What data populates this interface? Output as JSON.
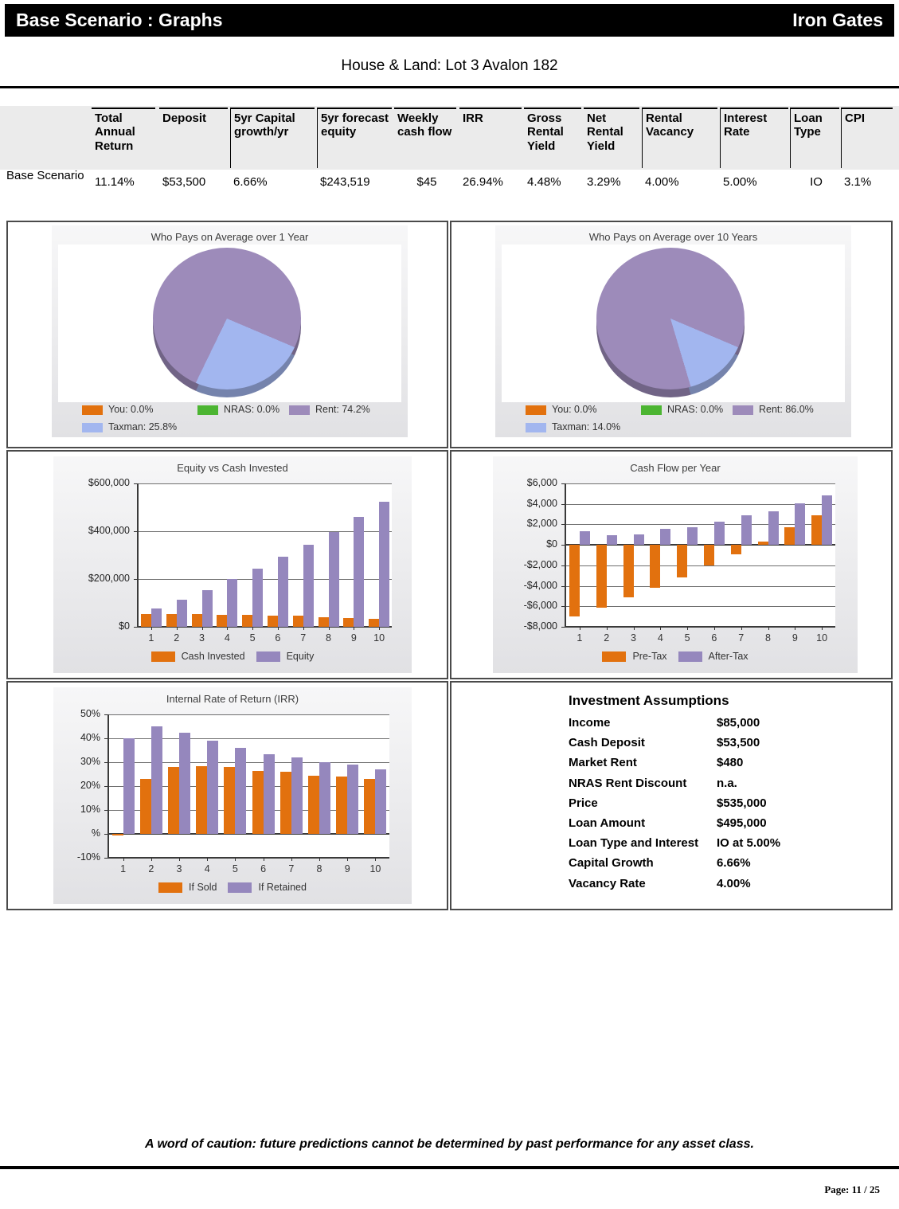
{
  "header": {
    "title": "Base Scenario : Graphs",
    "brand": "Iron Gates"
  },
  "page_title": "House & Land: Lot 3 Avalon 182",
  "scenario_table": {
    "row_label": "Base Scenario",
    "columns": [
      {
        "label": "Total Annual Return",
        "value": "11.14%"
      },
      {
        "label": "Deposit",
        "value": "$53,500"
      },
      {
        "label": "5yr Capital growth/yr",
        "value": "6.66%"
      },
      {
        "label": "5yr forecast equity",
        "value": "$243,519"
      },
      {
        "label": "Weekly cash flow",
        "value": "$45"
      },
      {
        "label": "IRR",
        "value": "26.94%"
      },
      {
        "label": "Gross Rental Yield",
        "value": "4.48%"
      },
      {
        "label": "Net Rental Yield",
        "value": "3.29%"
      },
      {
        "label": "Rental Vacancy",
        "value": "4.00%"
      },
      {
        "label": "Interest Rate",
        "value": "5.00%"
      },
      {
        "label": "Loan Type",
        "value": "IO"
      },
      {
        "label": "CPI",
        "value": "3.1%"
      }
    ]
  },
  "colors": {
    "orange": "#E2710E",
    "green": "#4CB532",
    "purple": "#9587BD",
    "pie_purple": "#9D8BBA",
    "blue": "#A2B6EF",
    "box_border": "#4a4a4a",
    "gridline": "#6f6f6f",
    "axis": "#333333"
  },
  "chart_data": [
    {
      "id": "pie-1yr",
      "type": "pie",
      "title": "Who Pays on Average over 1 Year",
      "slices": [
        {
          "label": "You",
          "pct": 0.0,
          "color": "#E2710E",
          "display": "You: 0.0%"
        },
        {
          "label": "NRAS",
          "pct": 0.0,
          "color": "#4CB532",
          "display": "NRAS: 0.0%"
        },
        {
          "label": "Rent",
          "pct": 74.2,
          "color": "#9D8BBA",
          "display": "Rent: 74.2%"
        },
        {
          "label": "Taxman",
          "pct": 25.8,
          "color": "#A2B6EF",
          "display": "Taxman: 25.8%"
        }
      ]
    },
    {
      "id": "pie-10yr",
      "type": "pie",
      "title": "Who Pays on Average over 10 Years",
      "slices": [
        {
          "label": "You",
          "pct": 0.0,
          "color": "#E2710E",
          "display": "You: 0.0%"
        },
        {
          "label": "NRAS",
          "pct": 0.0,
          "color": "#4CB532",
          "display": "NRAS: 0.0%"
        },
        {
          "label": "Rent",
          "pct": 86.0,
          "color": "#9D8BBA",
          "display": "Rent: 86.0%"
        },
        {
          "label": "Taxman",
          "pct": 14.0,
          "color": "#A2B6EF",
          "display": "Taxman: 14.0%"
        }
      ]
    },
    {
      "id": "equity",
      "type": "bar",
      "title": "Equity vs Cash Invested",
      "categories": [
        "1",
        "2",
        "3",
        "4",
        "5",
        "6",
        "7",
        "8",
        "9",
        "10"
      ],
      "series": [
        {
          "name": "Cash Invested",
          "color": "#E2710E",
          "values": [
            53500,
            54000,
            53500,
            51500,
            50500,
            47500,
            46500,
            41000,
            37000,
            33000
          ]
        },
        {
          "name": "Equity",
          "color": "#9587BD",
          "values": [
            78000,
            115000,
            152000,
            200000,
            243519,
            295000,
            345000,
            398000,
            460000,
            525000
          ]
        }
      ],
      "ylim": [
        0,
        600000
      ],
      "yticks": [
        {
          "value": 600000,
          "label": "$600,000"
        },
        {
          "value": 400000,
          "label": "$400,000"
        },
        {
          "value": 200000,
          "label": "$200,000"
        },
        {
          "value": 0,
          "label": "$0"
        }
      ]
    },
    {
      "id": "cashflow",
      "type": "bar",
      "title": "Cash Flow per Year",
      "categories": [
        "1",
        "2",
        "3",
        "4",
        "5",
        "6",
        "7",
        "8",
        "9",
        "10"
      ],
      "series": [
        {
          "name": "Pre-Tax",
          "color": "#E2710E",
          "values": [
            -7000,
            -6100,
            -5100,
            -4200,
            -3200,
            -2050,
            -900,
            300,
            1700,
            2900
          ]
        },
        {
          "name": "After-Tax",
          "color": "#9587BD",
          "values": [
            1300,
            950,
            1050,
            1550,
            1750,
            2250,
            2900,
            3300,
            4050,
            4800
          ]
        }
      ],
      "ylim": [
        -8000,
        6000
      ],
      "yticks": [
        {
          "value": 6000,
          "label": "$6,000"
        },
        {
          "value": 4000,
          "label": "$4,000"
        },
        {
          "value": 2000,
          "label": "$2,000"
        },
        {
          "value": 0,
          "label": "$0"
        },
        {
          "value": -2000,
          "label": "-$2,000"
        },
        {
          "value": -4000,
          "label": "-$4,000"
        },
        {
          "value": -6000,
          "label": "-$6,000"
        },
        {
          "value": -8000,
          "label": "-$8,000"
        }
      ]
    },
    {
      "id": "irr",
      "type": "bar",
      "title": "Internal Rate of Return (IRR)",
      "categories": [
        "1",
        "2",
        "3",
        "4",
        "5",
        "6",
        "7",
        "8",
        "9",
        "10"
      ],
      "series": [
        {
          "name": "If Sold",
          "color": "#E2710E",
          "values": [
            -0.5,
            23,
            28,
            28.5,
            28,
            26.5,
            26,
            24.5,
            24,
            23
          ]
        },
        {
          "name": "If Retained",
          "color": "#9587BD",
          "values": [
            40,
            45,
            42.5,
            39,
            36,
            33.5,
            32,
            30,
            29,
            27
          ]
        }
      ],
      "ylim": [
        -10,
        50
      ],
      "yticks": [
        {
          "value": 50,
          "label": "50%"
        },
        {
          "value": 40,
          "label": "40%"
        },
        {
          "value": 30,
          "label": "30%"
        },
        {
          "value": 20,
          "label": "20%"
        },
        {
          "value": 10,
          "label": "10%"
        },
        {
          "value": 0,
          "label": "%"
        },
        {
          "value": -10,
          "label": "-10%"
        }
      ]
    }
  ],
  "assumptions": {
    "title": "Investment Assumptions",
    "rows": [
      {
        "label": "Income",
        "value": "$85,000"
      },
      {
        "label": "Cash Deposit",
        "value": "$53,500"
      },
      {
        "label": "Market Rent",
        "value": "$480"
      },
      {
        "label": "NRAS Rent Discount",
        "value": "n.a."
      },
      {
        "label": "Price",
        "value": "$535,000"
      },
      {
        "label": "Loan Amount",
        "value": "$495,000"
      },
      {
        "label": "Loan Type and Interest",
        "value": "IO at 5.00%"
      },
      {
        "label": "Capital Growth",
        "value": "6.66%"
      },
      {
        "label": "Vacancy Rate",
        "value": "4.00%"
      }
    ]
  },
  "footer": {
    "caution": "A word of caution: future predictions cannot be determined by past performance for any asset class.",
    "page_label": "Page: 11 / 25"
  }
}
